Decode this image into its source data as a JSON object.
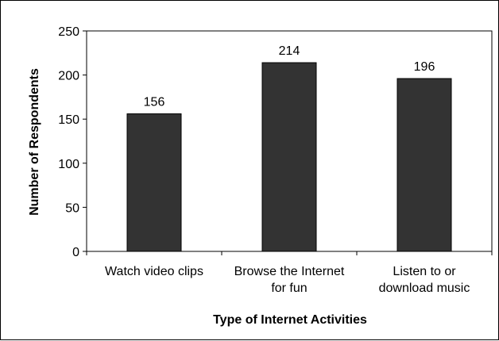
{
  "chart_data": {
    "type": "bar",
    "categories": [
      [
        "Watch video clips"
      ],
      [
        "Browse the Internet",
        "for fun"
      ],
      [
        "Listen to or",
        "download music"
      ]
    ],
    "values": [
      156,
      214,
      196
    ],
    "data_labels": [
      "156",
      "214",
      "196"
    ],
    "title": "",
    "xlabel": "Type of Internet Activities",
    "ylabel": "Number of Respondents",
    "ylim": [
      0,
      250
    ],
    "yticks": [
      0,
      50,
      100,
      150,
      200,
      250
    ],
    "grid": false,
    "legend": "none",
    "bar_color": "#333333"
  }
}
